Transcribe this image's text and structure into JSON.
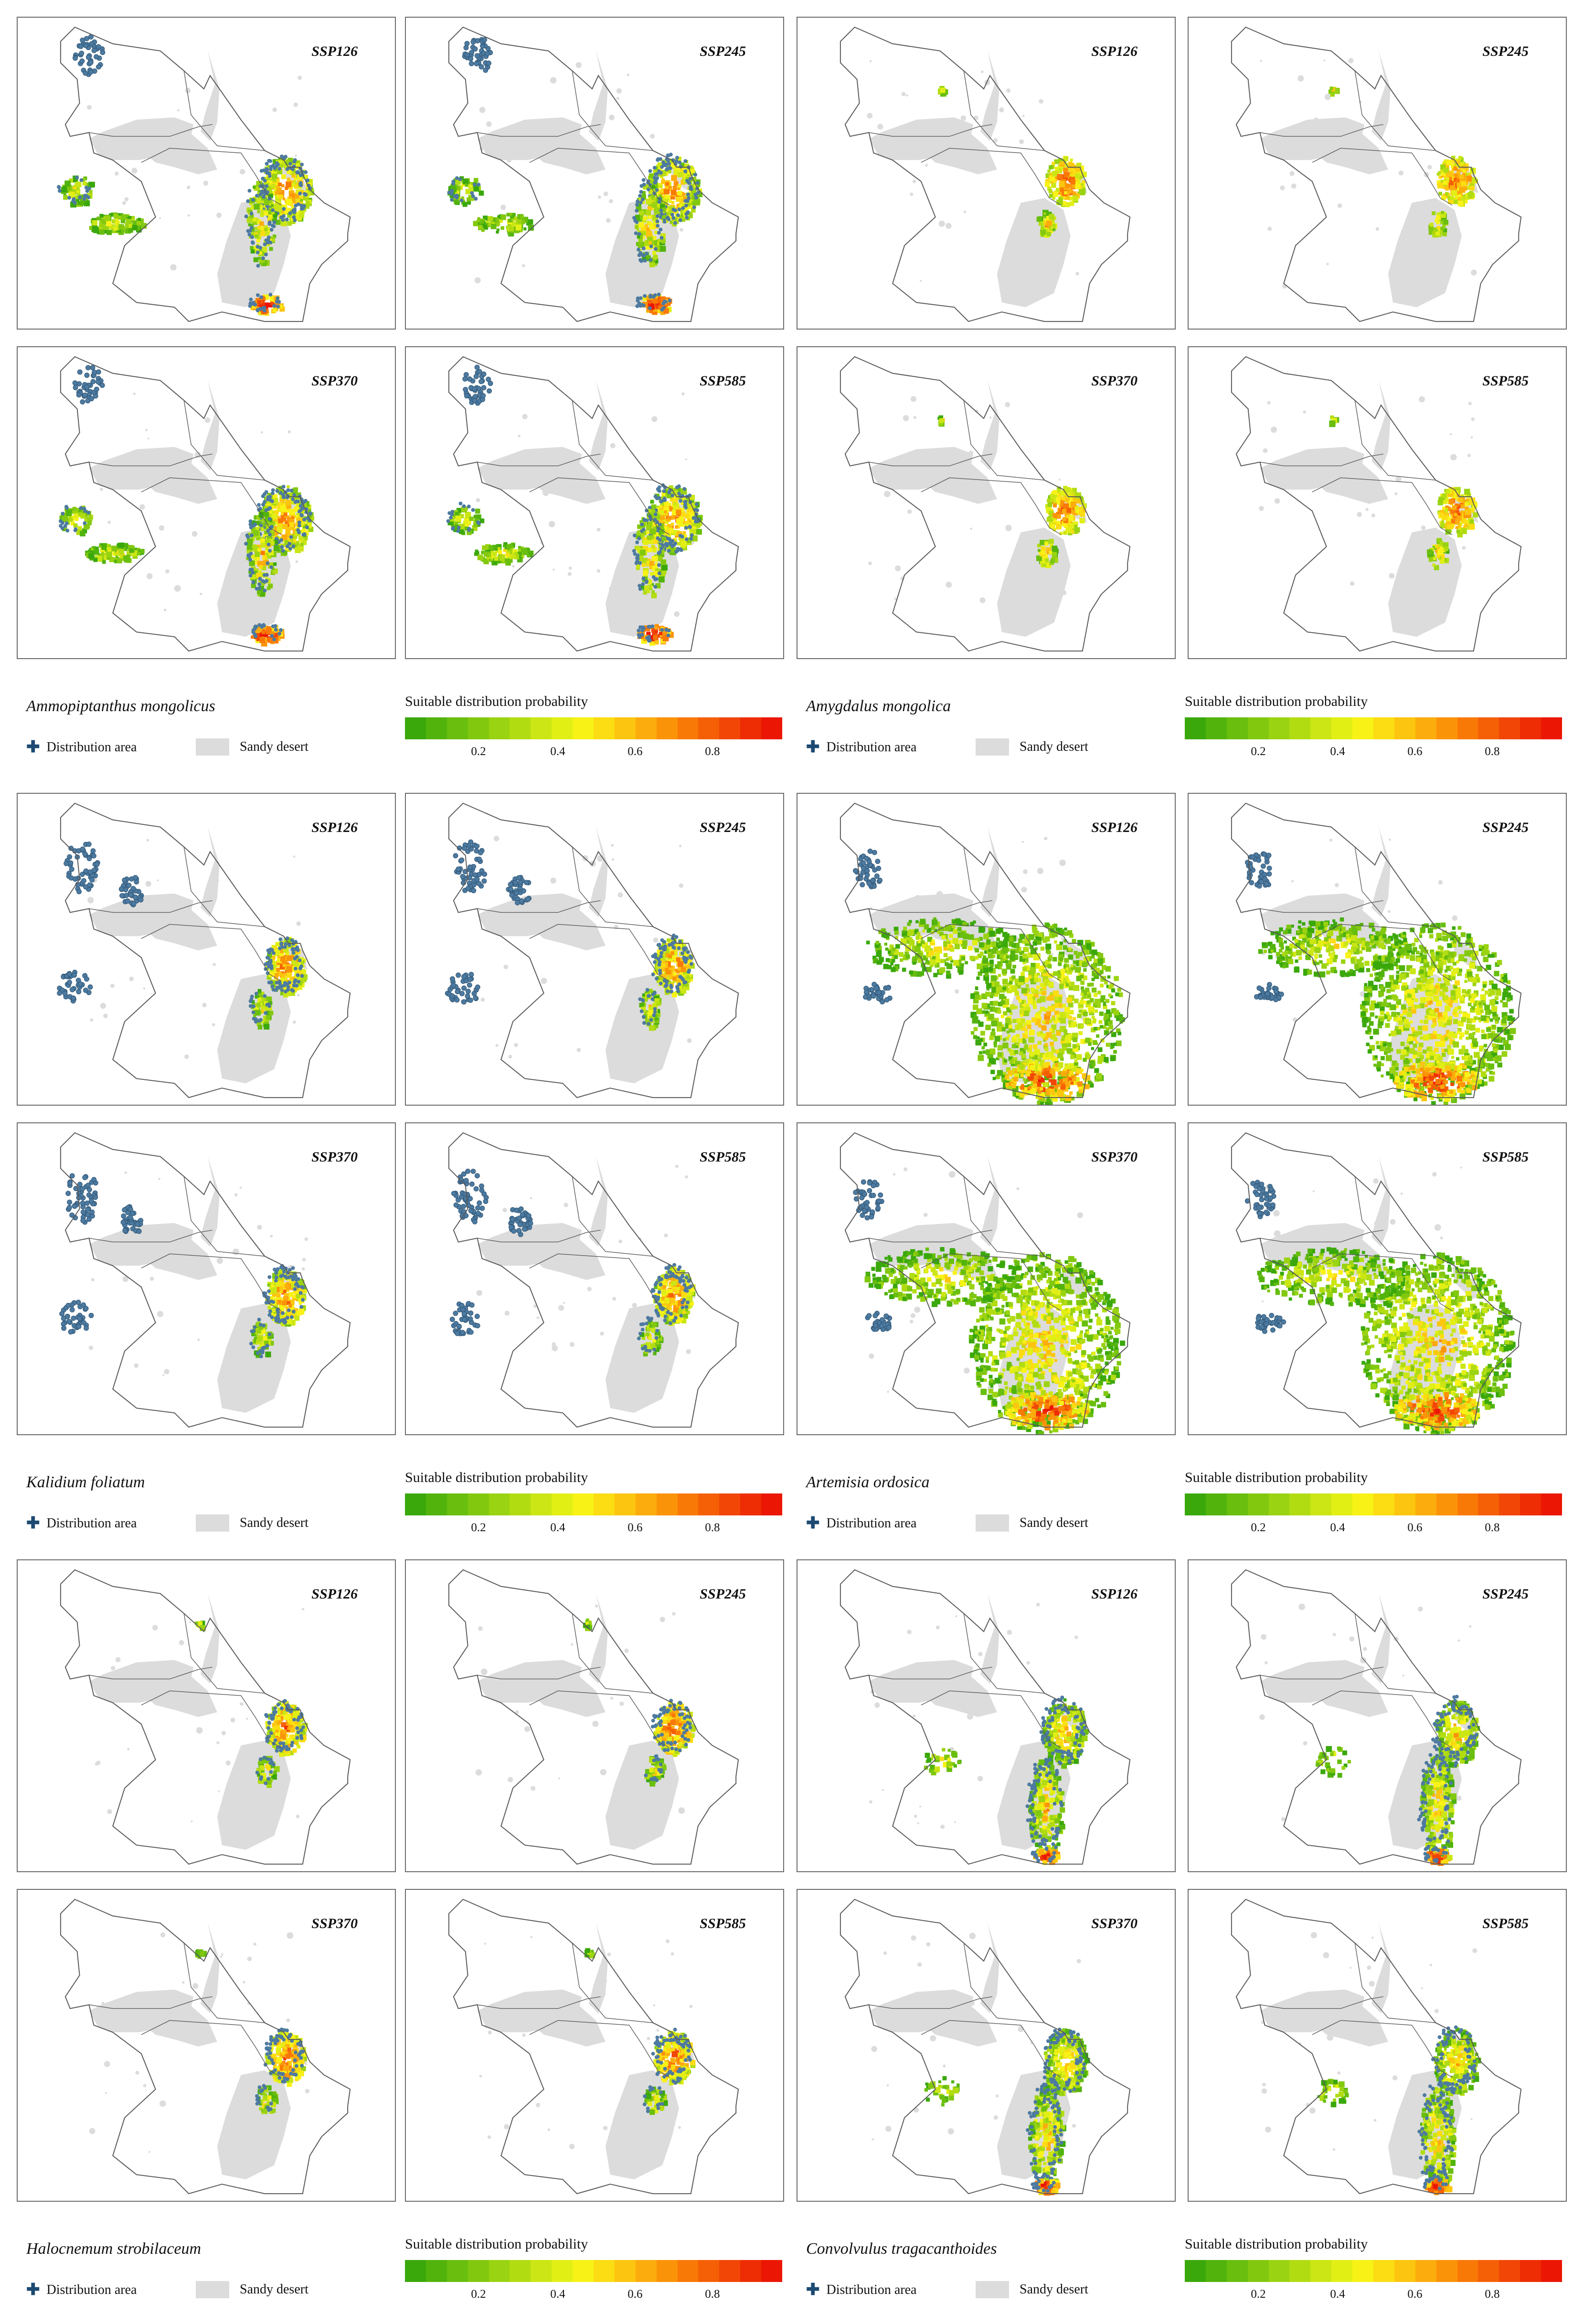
{
  "species": [
    {
      "name": "Ammopiptanthus mongolicus",
      "pattern": "ammo"
    },
    {
      "name": "Amygdalus mongolica",
      "pattern": "amyg"
    },
    {
      "name": "Kalidium foliatum",
      "pattern": "kali"
    },
    {
      "name": "Artemisia ordosica",
      "pattern": "arte"
    },
    {
      "name": "Halocnemum strobilaceum",
      "pattern": "halo"
    },
    {
      "name": "Convolvulus tragacanthoides",
      "pattern": "conv"
    }
  ],
  "scenarios": [
    "SSP126",
    "SSP245",
    "SSP370",
    "SSP585"
  ],
  "legend": {
    "distribution_label": "Distribution area",
    "sandy_label": "Sandy desert",
    "probability_title": "Suitable distribution probability",
    "ticks": [
      "0.2",
      "0.4",
      "0.6",
      "0.8"
    ]
  },
  "colors": {
    "ramp": [
      "#3aa80b",
      "#52b30c",
      "#69be0e",
      "#82c80f",
      "#9ad311",
      "#b2dc12",
      "#cbe614",
      "#e2ef15",
      "#f8f216",
      "#fcdc12",
      "#fcc50f",
      "#fcac0c",
      "#fb9309",
      "#f97907",
      "#f56006",
      "#f14605",
      "#ee2d04",
      "#eb1603"
    ],
    "distribution": "#4d7aa0",
    "sandy": "#dcdcdc",
    "outline": "#5a5a5a"
  }
}
